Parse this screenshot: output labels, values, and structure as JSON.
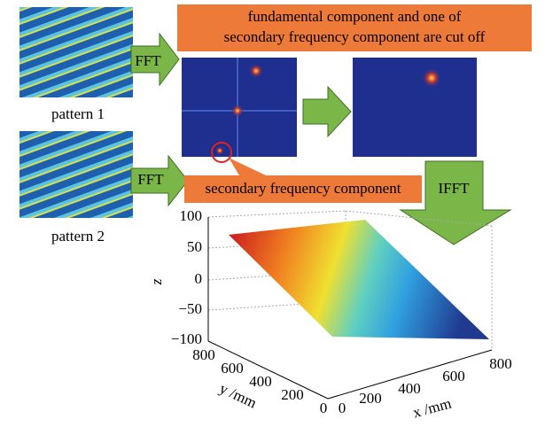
{
  "patterns": [
    {
      "label": "pattern 1"
    },
    {
      "label": "pattern 2"
    }
  ],
  "arrows": {
    "fft1": "FFT",
    "fft2": "FFT",
    "ifft": "IFFT"
  },
  "callouts": {
    "top": [
      "fundamental component and one of",
      "secondary frequency component are cut off"
    ],
    "secondary": "secondary frequency component"
  },
  "plot": {
    "z_label": "z",
    "z_ticks": [
      "100",
      "50",
      "0",
      "−50",
      "−100"
    ],
    "y_label": "y /mm",
    "y_ticks": [
      "800",
      "600",
      "400",
      "200",
      "0"
    ],
    "x_label": "x /mm",
    "x_ticks": [
      "0",
      "200",
      "400",
      "600",
      "800"
    ]
  }
}
